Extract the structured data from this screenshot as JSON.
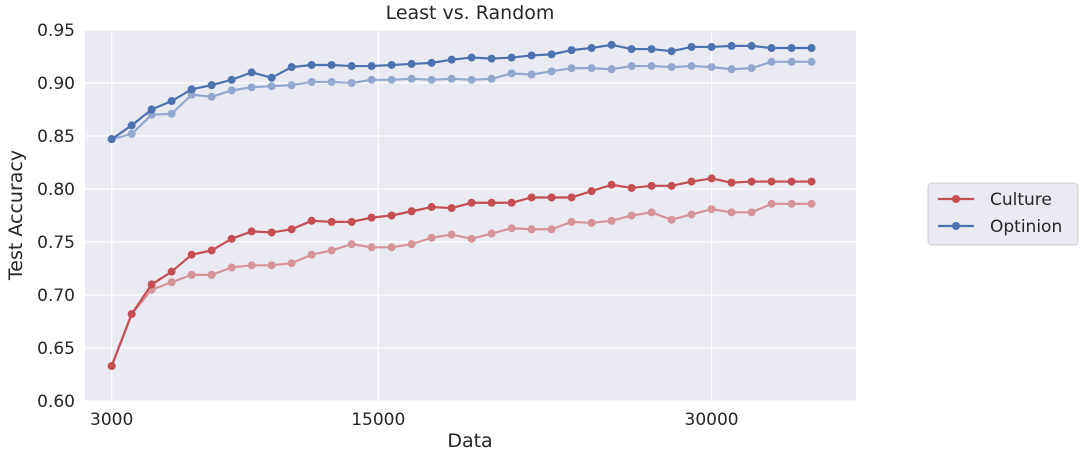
{
  "chart_data": {
    "type": "line",
    "title": "Least vs. Random",
    "xlabel": "Data",
    "ylabel": "Test Accuracy",
    "xlim": [
      1800,
      36500
    ],
    "ylim": [
      0.6,
      0.95
    ],
    "xticks": [
      3000,
      15000,
      30000
    ],
    "xtick_labels": [
      "3000",
      "15000",
      "30000"
    ],
    "yticks": [
      0.6,
      0.65,
      0.7,
      0.75,
      0.8,
      0.85,
      0.9,
      0.95
    ],
    "ytick_labels": [
      "0.60",
      "0.65",
      "0.70",
      "0.75",
      "0.80",
      "0.85",
      "0.90",
      "0.95"
    ],
    "grid": true,
    "legend_position": "right",
    "x": [
      3000,
      3900,
      4800,
      5700,
      6600,
      7500,
      8400,
      9300,
      10200,
      11100,
      12000,
      12900,
      13800,
      14700,
      15600,
      16500,
      17400,
      18300,
      19200,
      20100,
      21000,
      21900,
      22800,
      23700,
      24600,
      25500,
      26400,
      27300,
      28200,
      29100,
      30000,
      30900,
      31800,
      32700,
      33600,
      34500
    ],
    "series": [
      {
        "name": "Culture",
        "color": "#c44e52",
        "values": [
          0.633,
          0.682,
          0.71,
          0.722,
          0.738,
          0.742,
          0.753,
          0.76,
          0.759,
          0.762,
          0.77,
          0.769,
          0.769,
          0.773,
          0.775,
          0.779,
          0.783,
          0.782,
          0.787,
          0.787,
          0.787,
          0.792,
          0.792,
          0.792,
          0.798,
          0.804,
          0.801,
          0.803,
          0.803,
          0.807,
          0.81,
          0.806,
          0.807,
          0.807,
          0.807,
          0.807
        ]
      },
      {
        "name": "",
        "color": "#c44e52",
        "faded": true,
        "values": [
          0.633,
          0.682,
          0.705,
          0.712,
          0.719,
          0.719,
          0.726,
          0.728,
          0.728,
          0.73,
          0.738,
          0.742,
          0.748,
          0.745,
          0.745,
          0.748,
          0.754,
          0.757,
          0.753,
          0.758,
          0.763,
          0.762,
          0.762,
          0.769,
          0.768,
          0.77,
          0.775,
          0.778,
          0.771,
          0.776,
          0.781,
          0.778,
          0.778,
          0.786,
          0.786,
          0.786
        ]
      },
      {
        "name": "Optinion",
        "color": "#4c72b0",
        "values": [
          0.847,
          0.86,
          0.875,
          0.883,
          0.894,
          0.898,
          0.903,
          0.91,
          0.905,
          0.915,
          0.917,
          0.917,
          0.916,
          0.916,
          0.917,
          0.918,
          0.919,
          0.922,
          0.924,
          0.923,
          0.924,
          0.926,
          0.927,
          0.931,
          0.933,
          0.936,
          0.932,
          0.932,
          0.93,
          0.934,
          0.934,
          0.935,
          0.935,
          0.933,
          0.933,
          0.933
        ]
      },
      {
        "name": "",
        "color": "#4c72b0",
        "faded": true,
        "values": [
          0.847,
          0.852,
          0.87,
          0.871,
          0.889,
          0.887,
          0.893,
          0.896,
          0.897,
          0.898,
          0.901,
          0.901,
          0.9,
          0.903,
          0.903,
          0.904,
          0.903,
          0.904,
          0.903,
          0.904,
          0.909,
          0.908,
          0.911,
          0.914,
          0.914,
          0.913,
          0.916,
          0.916,
          0.915,
          0.916,
          0.915,
          0.913,
          0.914,
          0.92,
          0.92,
          0.92
        ]
      }
    ]
  }
}
